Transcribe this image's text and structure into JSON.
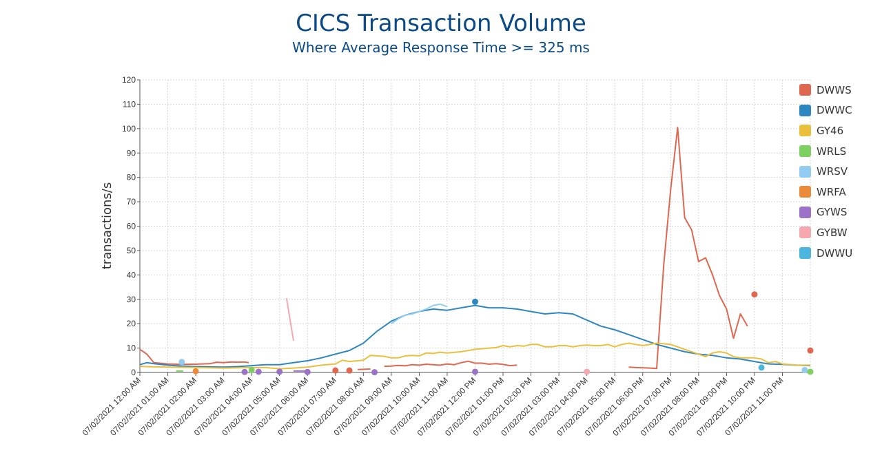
{
  "header": {
    "title": "CICS Transaction Volume",
    "subtitle": "Where Average Response Time >= 325 ms"
  },
  "chart_data": {
    "type": "line",
    "title": "CICS Transaction Volume",
    "subtitle": "Where Average Response Time >= 325 ms",
    "xlabel": "",
    "ylabel": "transactions/s",
    "ylim": [
      0,
      120
    ],
    "y_ticks": [
      0,
      10,
      20,
      30,
      40,
      50,
      60,
      70,
      80,
      90,
      100,
      110,
      120
    ],
    "xlim": [
      0,
      24
    ],
    "x_unit": "hours since 07/02/2021 12:00 AM",
    "x_tick_labels": [
      "07/02/2021 12:00 AM",
      "07/02/2021 01:00 AM",
      "07/02/2021 02:00 AM",
      "07/02/2021 03:00 AM",
      "07/02/2021 04:00 AM",
      "07/02/2021 05:00 AM",
      "07/02/2021 06:00 AM",
      "07/02/2021 07:00 AM",
      "07/02/2021 08:00 AM",
      "07/02/2021 09:00 AM",
      "07/02/2021 10:00 AM",
      "07/02/2021 11:00 AM",
      "07/02/2021 12:00 PM",
      "07/02/2021 01:00 PM",
      "07/02/2021 02:00 PM",
      "07/02/2021 03:00 PM",
      "07/02/2021 04:00 PM",
      "07/02/2021 05:00 PM",
      "07/02/2021 06:00 PM",
      "07/02/2021 07:00 PM",
      "07/02/2021 08:00 PM",
      "07/02/2021 09:00 PM",
      "07/02/2021 10:00 PM",
      "07/02/2021 11:00 PM"
    ],
    "grid": true,
    "legend_position": "right",
    "series": [
      {
        "name": "DWWS",
        "color": "#e0674f",
        "segments": [
          [
            [
              0,
              9.5
            ],
            [
              0.25,
              7.5
            ],
            [
              0.5,
              4
            ],
            [
              1,
              3.5
            ],
            [
              1.5,
              3.3
            ],
            [
              2,
              3.4
            ],
            [
              2.5,
              3.6
            ],
            [
              2.75,
              4.2
            ],
            [
              3,
              4
            ],
            [
              3.25,
              4.3
            ],
            [
              3.5,
              4.2
            ],
            [
              3.75,
              4.3
            ],
            [
              3.9,
              4
            ]
          ],
          [
            [
              7.8,
              1.2
            ],
            [
              8.25,
              1.4
            ]
          ],
          [
            [
              8.75,
              2.5
            ],
            [
              9,
              2.6
            ],
            [
              9.25,
              2.9
            ],
            [
              9.5,
              2.7
            ],
            [
              9.75,
              3.2
            ],
            [
              10,
              3
            ],
            [
              10.25,
              3.4
            ],
            [
              10.5,
              3.2
            ],
            [
              10.75,
              3
            ],
            [
              11,
              3.5
            ],
            [
              11.25,
              3.2
            ],
            [
              11.5,
              4
            ],
            [
              11.75,
              4.6
            ],
            [
              12,
              3.8
            ],
            [
              12.25,
              3.8
            ],
            [
              12.5,
              3.4
            ],
            [
              12.75,
              3.6
            ],
            [
              13,
              3.3
            ],
            [
              13.25,
              2.8
            ],
            [
              13.5,
              3
            ]
          ],
          [
            [
              17.5,
              2.2
            ],
            [
              17.75,
              2
            ],
            [
              18.25,
              1.8
            ],
            [
              18.5,
              1.6
            ],
            [
              18.75,
              44
            ],
            [
              19,
              75
            ],
            [
              19.25,
              100.5
            ],
            [
              19.5,
              63.5
            ],
            [
              19.75,
              58.5
            ],
            [
              20,
              45.5
            ],
            [
              20.25,
              47
            ],
            [
              20.5,
              40
            ],
            [
              20.75,
              31.5
            ],
            [
              21,
              26
            ],
            [
              21.25,
              14
            ],
            [
              21.5,
              24
            ],
            [
              21.75,
              19
            ]
          ]
        ],
        "points": [
          [
            7,
            0.8
          ],
          [
            7.5,
            0.8
          ],
          [
            22,
            32
          ],
          [
            24,
            9
          ]
        ]
      },
      {
        "name": "DWWC",
        "color": "#2e86c1",
        "segments": [
          [
            [
              0,
              3.2
            ],
            [
              0.25,
              4
            ],
            [
              0.5,
              3.6
            ],
            [
              1,
              3
            ],
            [
              1.5,
              2.6
            ],
            [
              2,
              2.4
            ],
            [
              2.5,
              2.3
            ],
            [
              3,
              2.2
            ],
            [
              3.5,
              2.4
            ],
            [
              4,
              2.8
            ],
            [
              4.5,
              3.2
            ],
            [
              5,
              3.2
            ],
            [
              5.5,
              4
            ],
            [
              6,
              4.8
            ],
            [
              6.5,
              6
            ],
            [
              7,
              7.5
            ],
            [
              7.5,
              9
            ],
            [
              8,
              12
            ],
            [
              8.5,
              17
            ],
            [
              9,
              21
            ],
            [
              9.5,
              23.5
            ],
            [
              10,
              25
            ],
            [
              10.5,
              26
            ],
            [
              11,
              25.5
            ],
            [
              11.5,
              26.5
            ],
            [
              12,
              27.5
            ],
            [
              12.5,
              26.5
            ],
            [
              13,
              26.5
            ],
            [
              13.5,
              26
            ],
            [
              14,
              25
            ],
            [
              14.5,
              24
            ],
            [
              15,
              24.5
            ],
            [
              15.5,
              24
            ],
            [
              16,
              21.5
            ],
            [
              16.5,
              19
            ],
            [
              17,
              17.5
            ],
            [
              17.5,
              15.5
            ],
            [
              18,
              13.5
            ],
            [
              18.5,
              11.5
            ],
            [
              19,
              10
            ],
            [
              19.5,
              8.5
            ],
            [
              20,
              7.5
            ],
            [
              20.5,
              7
            ],
            [
              21,
              6
            ],
            [
              21.5,
              5.5
            ],
            [
              22,
              4.5
            ],
            [
              22.5,
              3.5
            ],
            [
              23,
              3.3
            ],
            [
              23.5,
              3
            ],
            [
              24,
              2.8
            ]
          ]
        ],
        "points": [
          [
            12,
            29
          ]
        ]
      },
      {
        "name": "GY46",
        "color": "#eabf3c",
        "segments": [
          [
            [
              0,
              2.5
            ],
            [
              0.5,
              2.3
            ],
            [
              1,
              2.2
            ],
            [
              2,
              2
            ],
            [
              3,
              1.8
            ],
            [
              4,
              2
            ],
            [
              4.5,
              2
            ],
            [
              5,
              1.5
            ],
            [
              5.5,
              1.8
            ],
            [
              6,
              2.2
            ],
            [
              6.5,
              3
            ],
            [
              7,
              3.5
            ],
            [
              7.25,
              5
            ],
            [
              7.5,
              4.5
            ],
            [
              8,
              5
            ],
            [
              8.25,
              7
            ],
            [
              8.5,
              6.8
            ],
            [
              8.75,
              6.6
            ],
            [
              9,
              6
            ],
            [
              9.25,
              6
            ],
            [
              9.5,
              6.8
            ],
            [
              9.75,
              7
            ],
            [
              10,
              6.8
            ],
            [
              10.25,
              8
            ],
            [
              10.5,
              7.8
            ],
            [
              10.75,
              8.3
            ],
            [
              11,
              8
            ],
            [
              11.5,
              8.5
            ],
            [
              12,
              9.5
            ],
            [
              12.5,
              10
            ],
            [
              12.75,
              10.2
            ],
            [
              13,
              11
            ],
            [
              13.25,
              10.5
            ],
            [
              13.5,
              11
            ],
            [
              13.75,
              10.8
            ],
            [
              14,
              11.5
            ],
            [
              14.25,
              11.5
            ],
            [
              14.5,
              10.5
            ],
            [
              14.75,
              10.5
            ],
            [
              15,
              11
            ],
            [
              15.25,
              11
            ],
            [
              15.5,
              10.5
            ],
            [
              15.75,
              11
            ],
            [
              16,
              11.2
            ],
            [
              16.25,
              11
            ],
            [
              16.5,
              11
            ],
            [
              16.75,
              11.5
            ],
            [
              17,
              10.5
            ],
            [
              17.25,
              11.5
            ],
            [
              17.5,
              12
            ],
            [
              17.75,
              11.5
            ],
            [
              18,
              11
            ],
            [
              18.5,
              12
            ],
            [
              19,
              11.5
            ],
            [
              19.25,
              10.5
            ],
            [
              19.5,
              9.5
            ],
            [
              19.75,
              8.5
            ],
            [
              20,
              7.5
            ],
            [
              20.25,
              6.5
            ],
            [
              20.5,
              8
            ],
            [
              20.75,
              8.5
            ],
            [
              21,
              8
            ],
            [
              21.25,
              6.5
            ],
            [
              21.5,
              6
            ],
            [
              21.75,
              6
            ],
            [
              22,
              6
            ],
            [
              22.25,
              5.5
            ],
            [
              22.5,
              4
            ],
            [
              22.75,
              4.5
            ],
            [
              23,
              3.5
            ],
            [
              23.5,
              3
            ],
            [
              24,
              3
            ]
          ]
        ],
        "points": []
      },
      {
        "name": "WRLS",
        "color": "#7dcf5f",
        "segments": [
          [
            [
              1.3,
              0.6
            ],
            [
              1.55,
              0.6
            ]
          ]
        ],
        "points": [
          [
            4,
            1
          ],
          [
            24,
            0.3
          ]
        ]
      },
      {
        "name": "WRSV",
        "color": "#92ccf0",
        "segments": [
          [
            [
              9,
              20
            ],
            [
              9.25,
              22
            ],
            [
              9.5,
              23.5
            ],
            [
              9.75,
              24
            ],
            [
              10,
              25
            ],
            [
              10.25,
              26
            ],
            [
              10.5,
              27.5
            ],
            [
              10.75,
              28
            ],
            [
              11,
              27
            ]
          ]
        ],
        "points": [
          [
            1.5,
            4.3
          ],
          [
            23.8,
            1
          ]
        ]
      },
      {
        "name": "WRFA",
        "color": "#eb8a3a",
        "segments": [],
        "points": [
          [
            2,
            0.5
          ]
        ]
      },
      {
        "name": "GYWS",
        "color": "#9b72c7",
        "segments": [
          [
            [
              5.5,
              0.6
            ],
            [
              6,
              0.6
            ]
          ]
        ],
        "points": [
          [
            3.75,
            0.2
          ],
          [
            4.25,
            0.3
          ],
          [
            5,
            0.3
          ],
          [
            6,
            0.2
          ],
          [
            12,
            0.3
          ],
          [
            8.4,
            0.1
          ]
        ]
      },
      {
        "name": "GYBW",
        "color": "#f5a8ae",
        "segments": [
          [
            [
              5.25,
              30.5
            ],
            [
              5.5,
              13
            ]
          ]
        ],
        "points": [
          [
            16,
            0.3
          ]
        ]
      },
      {
        "name": "DWWU",
        "color": "#4cb5dd",
        "segments": [],
        "points": [
          [
            22.25,
            2
          ]
        ]
      }
    ]
  }
}
